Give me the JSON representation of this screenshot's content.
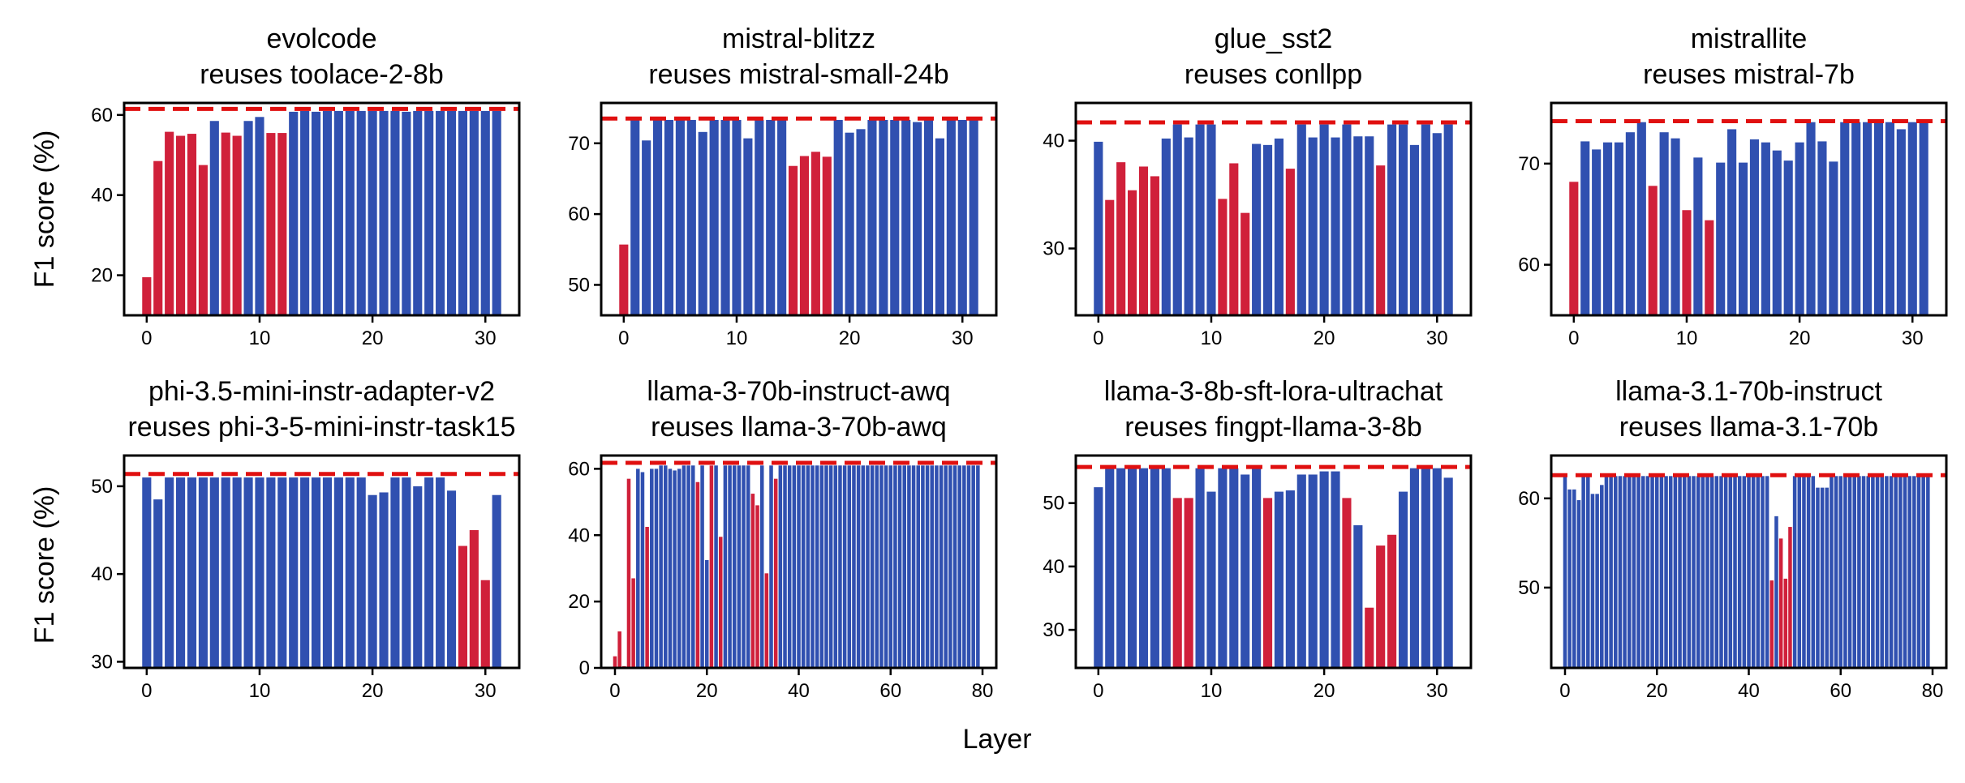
{
  "figure": {
    "ylabel": "F1 score (%)",
    "xlabel": "Layer"
  },
  "colors": {
    "above": "#3050b0",
    "below": "#d0203a",
    "baseline": "#e01010"
  },
  "chart_data": [
    {
      "type": "bar",
      "title": "evolcode",
      "subtitle": "reuses toolace-2-8b",
      "xlim": [
        -2,
        33
      ],
      "ylim": [
        10,
        63
      ],
      "xticks": [
        0,
        10,
        20,
        30
      ],
      "yticks": [
        20,
        40,
        60
      ],
      "baseline": 61.5,
      "values": [
        19.5,
        48.5,
        55.8,
        54.8,
        55.3,
        47.5,
        58.5,
        55.6,
        54.8,
        58.5,
        59.5,
        55.5,
        55.5,
        60.8,
        61.0,
        60.8,
        61.0,
        61.0,
        61.0,
        61.0,
        61.0,
        61.0,
        61.0,
        60.8,
        61.0,
        61.0,
        61.0,
        61.0,
        61.0,
        61.0,
        61.0,
        61.0
      ],
      "highlight": [
        0,
        1,
        2,
        3,
        4,
        5,
        7,
        8,
        11,
        12
      ]
    },
    {
      "type": "bar",
      "title": "mistral-blitzz",
      "subtitle": "reuses mistral-small-24b",
      "xlim": [
        -2,
        33
      ],
      "ylim": [
        45.7,
        75.7
      ],
      "xticks": [
        0,
        10,
        20,
        30
      ],
      "yticks": [
        50,
        60,
        70
      ],
      "baseline": 73.5,
      "values": [
        55.7,
        73.3,
        70.4,
        73.3,
        73.3,
        73.3,
        73.3,
        71.6,
        73.3,
        73.3,
        73.3,
        70.7,
        73.3,
        73.3,
        73.3,
        66.8,
        68.2,
        68.8,
        68.1,
        73.3,
        71.5,
        72.0,
        73.3,
        73.3,
        73.3,
        73.3,
        73.0,
        73.3,
        70.7,
        73.3,
        73.3,
        73.3
      ],
      "highlight": [
        0,
        15,
        16,
        17,
        18
      ]
    },
    {
      "type": "bar",
      "title": "glue_sst2",
      "subtitle": "reuses conllpp",
      "xlim": [
        -2,
        33
      ],
      "ylim": [
        23.8,
        43.5
      ],
      "xticks": [
        0,
        10,
        20,
        30
      ],
      "yticks": [
        30,
        40
      ],
      "baseline": 41.7,
      "values": [
        39.9,
        34.5,
        38.0,
        35.4,
        37.6,
        36.7,
        40.2,
        41.5,
        40.3,
        41.5,
        41.5,
        34.6,
        37.9,
        33.3,
        39.7,
        39.6,
        40.2,
        37.4,
        41.5,
        40.3,
        41.5,
        40.3,
        41.5,
        40.4,
        40.4,
        37.7,
        41.5,
        41.5,
        39.6,
        41.5,
        40.7,
        41.5
      ],
      "highlight": [
        1,
        2,
        3,
        4,
        5,
        11,
        12,
        13,
        17,
        25
      ]
    },
    {
      "type": "bar",
      "title": "mistrallite",
      "subtitle": "reuses mistral-7b",
      "xlim": [
        -2,
        33
      ],
      "ylim": [
        55,
        76
      ],
      "xticks": [
        0,
        10,
        20,
        30
      ],
      "yticks": [
        60,
        70
      ],
      "baseline": 74.2,
      "values": [
        68.2,
        72.2,
        71.4,
        72.1,
        72.1,
        73.1,
        74.1,
        67.8,
        73.1,
        72.5,
        65.4,
        70.6,
        64.4,
        70.1,
        73.4,
        70.1,
        72.4,
        72.1,
        71.3,
        70.3,
        72.1,
        74.1,
        72.2,
        70.2,
        74.1,
        74.1,
        74.1,
        74.1,
        74.1,
        73.4,
        74.1,
        74.1
      ],
      "highlight": [
        0,
        7,
        10,
        12
      ]
    },
    {
      "type": "bar",
      "title": "phi-3.5-mini-instr-adapter-v2",
      "subtitle": "reuses phi-3-5-mini-instr-task15",
      "xlim": [
        -2,
        33
      ],
      "ylim": [
        29.3,
        53.5
      ],
      "xticks": [
        0,
        10,
        20,
        30
      ],
      "yticks": [
        30,
        40,
        50
      ],
      "baseline": 51.4,
      "values": [
        51.0,
        48.5,
        51.0,
        51.0,
        51.0,
        51.0,
        51.0,
        51.0,
        51.0,
        51.0,
        51.0,
        51.0,
        51.0,
        51.0,
        51.0,
        51.0,
        51.0,
        51.0,
        51.0,
        51.0,
        49.0,
        49.3,
        51.0,
        51.0,
        50.0,
        51.0,
        51.0,
        49.5,
        43.2,
        45.0,
        39.3,
        49.0
      ],
      "highlight": [
        28,
        29,
        30
      ]
    },
    {
      "type": "bar",
      "title": "llama-3-70b-instruct-awq",
      "subtitle": "reuses llama-3-70b-awq",
      "xlim": [
        -3,
        83
      ],
      "ylim": [
        0,
        64
      ],
      "xticks": [
        0,
        20,
        40,
        60,
        80
      ],
      "yticks": [
        0,
        20,
        40,
        60
      ],
      "baseline": 61.8,
      "values": [
        3.5,
        11.0,
        0.5,
        57.0,
        27.0,
        60.0,
        59.0,
        42.5,
        60.0,
        60.0,
        61.0,
        61.0,
        60.0,
        59.5,
        60.0,
        61.0,
        61.0,
        61.0,
        56.0,
        61.0,
        32.5,
        61.0,
        61.0,
        39.5,
        61.0,
        61.0,
        61.0,
        61.0,
        61.0,
        61.0,
        52.5,
        49.0,
        61.0,
        28.5,
        61.0,
        57.0,
        61.0,
        61.0,
        61.0,
        61.0,
        61.0,
        61.0,
        61.0,
        61.0,
        61.0,
        61.0,
        61.0,
        61.0,
        61.0,
        61.0,
        61.0,
        61.0,
        61.0,
        61.0,
        61.0,
        61.0,
        61.0,
        61.0,
        61.0,
        61.0,
        61.0,
        61.0,
        61.0,
        61.0,
        61.0,
        61.0,
        61.0,
        61.0,
        61.0,
        61.0,
        61.0,
        61.0,
        61.0,
        61.0,
        61.0,
        61.0,
        61.0,
        61.0,
        61.0,
        61.0
      ],
      "highlight": [
        0,
        1,
        2,
        3,
        4,
        7,
        18,
        21,
        23,
        30,
        31,
        33,
        35
      ]
    },
    {
      "type": "bar",
      "title": "llama-3-8b-sft-lora-ultrachat",
      "subtitle": "reuses fingpt-llama-3-8b",
      "xlim": [
        -2,
        33
      ],
      "ylim": [
        24,
        57.5
      ],
      "xticks": [
        0,
        10,
        20,
        30
      ],
      "yticks": [
        30,
        40,
        50
      ],
      "baseline": 55.7,
      "values": [
        52.5,
        55.5,
        55.5,
        55.5,
        55.5,
        55.5,
        55.5,
        50.8,
        50.8,
        55.5,
        51.8,
        55.5,
        55.5,
        54.5,
        55.5,
        50.8,
        51.8,
        52.0,
        54.5,
        54.5,
        55.0,
        55.0,
        50.8,
        46.5,
        33.5,
        43.3,
        45.0,
        51.8,
        55.5,
        55.5,
        55.5,
        54.0
      ],
      "highlight": [
        7,
        8,
        15,
        22,
        24,
        25,
        26
      ]
    },
    {
      "type": "bar",
      "title": "llama-3.1-70b-instruct",
      "subtitle": "reuses llama-3.1-70b",
      "xlim": [
        -3,
        83
      ],
      "ylim": [
        41,
        64.8
      ],
      "xticks": [
        0,
        20,
        40,
        60,
        80
      ],
      "yticks": [
        50,
        60
      ],
      "baseline": 62.6,
      "values": [
        62.5,
        61.0,
        61.0,
        59.8,
        62.5,
        62.5,
        60.5,
        60.5,
        61.5,
        62.5,
        62.5,
        62.5,
        62.5,
        62.5,
        62.5,
        62.5,
        62.5,
        62.5,
        62.5,
        62.5,
        62.5,
        62.5,
        62.5,
        62.5,
        62.5,
        62.5,
        62.5,
        62.5,
        62.5,
        62.5,
        62.5,
        62.5,
        62.5,
        62.5,
        62.5,
        62.5,
        62.5,
        62.5,
        62.5,
        62.5,
        62.5,
        62.5,
        62.5,
        62.5,
        62.5,
        50.8,
        58.0,
        55.5,
        51.0,
        56.8,
        62.5,
        62.5,
        62.5,
        62.5,
        62.5,
        61.2,
        61.2,
        61.2,
        62.5,
        62.5,
        62.5,
        62.5,
        62.5,
        62.5,
        62.5,
        62.5,
        62.5,
        62.5,
        62.5,
        62.5,
        62.5,
        62.5,
        62.5,
        62.5,
        62.5,
        62.5,
        62.5,
        62.5,
        62.5,
        62.5
      ],
      "highlight": [
        45,
        47,
        48,
        49
      ]
    }
  ]
}
